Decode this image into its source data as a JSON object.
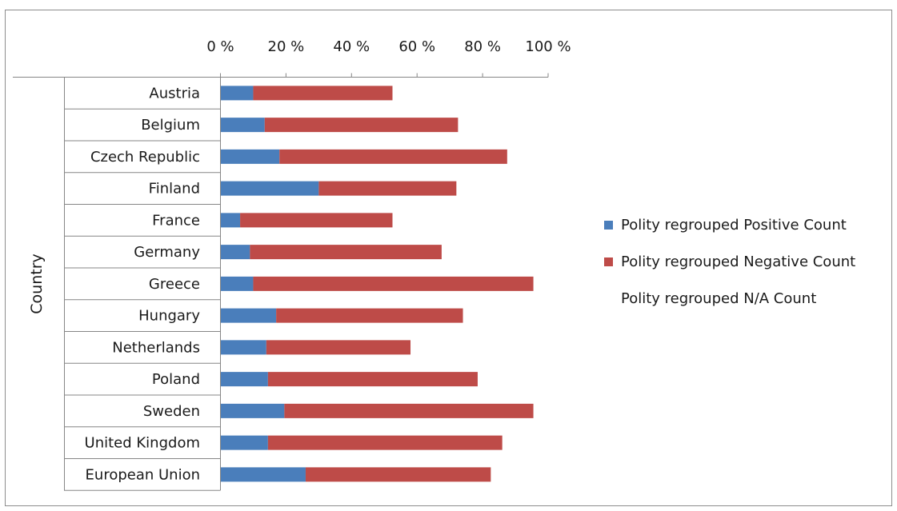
{
  "chart_data": {
    "type": "bar",
    "orientation": "horizontal",
    "stacked": true,
    "title": "",
    "xlabel": "",
    "ylabel": "Country",
    "xlim": [
      0,
      100
    ],
    "x_ticks": [
      "0 %",
      "20 %",
      "40 %",
      "60 %",
      "80 %",
      "100 %"
    ],
    "x_axis_position": "top",
    "grid": false,
    "legend_position": "right",
    "categories": [
      "Austria",
      "Belgium",
      "Czech Republic",
      "Finland",
      "France",
      "Germany",
      "Greece",
      "Hungary",
      "Netherlands",
      "Poland",
      "Sweden",
      "United Kingdom",
      "European Union"
    ],
    "series": [
      {
        "name": "Polity regrouped Positive Count",
        "color": "#4a7ebb",
        "values": [
          10,
          13.5,
          18,
          30,
          6,
          9,
          10,
          17,
          14,
          14.5,
          19.5,
          14.5,
          26
        ]
      },
      {
        "name": "Polity regrouped Negative Count",
        "color": "#be4b48",
        "values": [
          42.5,
          59,
          69.5,
          42,
          46.5,
          58.5,
          85.5,
          57,
          44,
          64,
          76,
          71.5,
          56.5
        ]
      },
      {
        "name": "Polity regrouped N/A Count",
        "color": "#ffffff",
        "values": [
          0,
          0,
          0,
          0,
          0,
          0,
          0,
          0,
          0,
          0,
          0,
          0,
          0
        ]
      }
    ]
  }
}
